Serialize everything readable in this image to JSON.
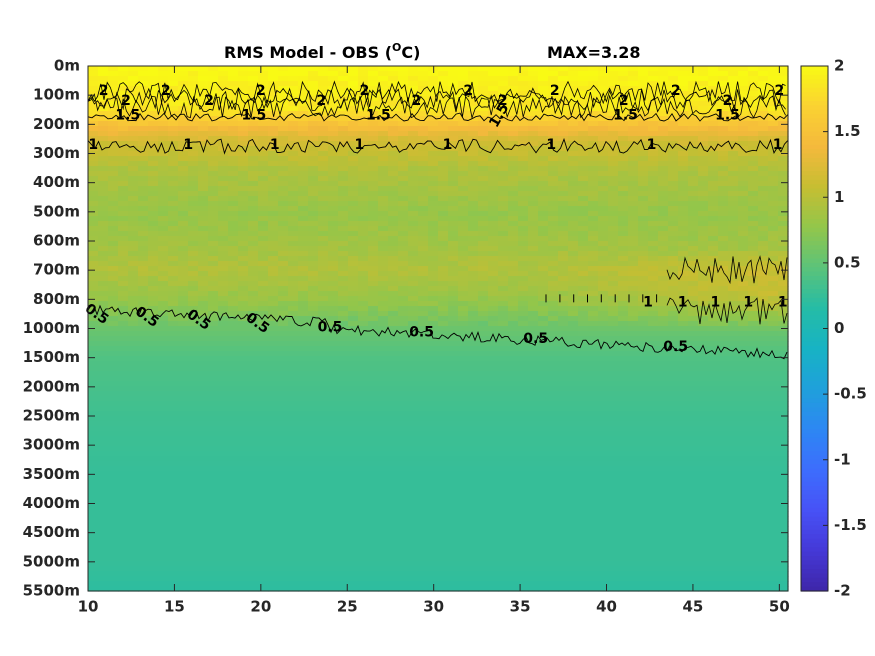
{
  "chart_data": {
    "type": "heatmap",
    "title": "RMS Model - OBS (",
    "title_sup": "O",
    "title_tail": "C)",
    "max_label": "MAX=3.28",
    "xlabel": "",
    "ylabel": "",
    "x_ticks": [
      "10",
      "15",
      "20",
      "25",
      "30",
      "35",
      "40",
      "45",
      "50"
    ],
    "x_tick_values": [
      10,
      15,
      20,
      25,
      30,
      35,
      40,
      45,
      50
    ],
    "xlim": [
      10,
      50.5
    ],
    "y_ticks": [
      "0m",
      "100m",
      "200m",
      "300m",
      "400m",
      "500m",
      "600m",
      "700m",
      "800m",
      "1000m",
      "1500m",
      "2000m",
      "2500m",
      "3000m",
      "3500m",
      "4000m",
      "4500m",
      "5000m",
      "5500m"
    ],
    "colorbar": {
      "ticks": [
        "2",
        "1.5",
        "1",
        "0.5",
        "0",
        "-0.5",
        "-1",
        "-1.5",
        "-2"
      ],
      "tick_values": [
        2,
        1.5,
        1,
        0.5,
        0,
        -0.5,
        -1,
        -1.5,
        -2
      ],
      "range": [
        -2,
        2
      ]
    },
    "depth_profile": [
      {
        "level": 0.0,
        "value": 2.0
      },
      {
        "level": 1.5,
        "value": 1.85
      },
      {
        "level": 2.0,
        "value": 1.5
      },
      {
        "level": 2.6,
        "value": 1.15
      },
      {
        "level": 3.5,
        "value": 0.95
      },
      {
        "level": 5.0,
        "value": 0.8
      },
      {
        "level": 6.0,
        "value": 0.85
      },
      {
        "level": 7.0,
        "value": 0.95
      },
      {
        "level": 8.0,
        "value": 0.8
      },
      {
        "level": 9.0,
        "value": 0.55
      },
      {
        "level": 10.0,
        "value": 0.4
      },
      {
        "level": 12.0,
        "value": 0.3
      },
      {
        "level": 14.0,
        "value": 0.25
      },
      {
        "level": 17.0,
        "value": 0.25
      },
      {
        "level": 18.0,
        "value": 0.2
      }
    ],
    "contours": [
      {
        "level": "2",
        "labels": [
          {
            "x": 10.9,
            "text": "2"
          },
          {
            "x": 12.2,
            "text": "2"
          },
          {
            "x": 14.5,
            "text": "2"
          },
          {
            "x": 17.0,
            "text": "2"
          },
          {
            "x": 20.0,
            "text": "2"
          },
          {
            "x": 23.5,
            "text": "2"
          },
          {
            "x": 26.0,
            "text": "2"
          },
          {
            "x": 29.0,
            "text": "2"
          },
          {
            "x": 32.0,
            "text": "2"
          },
          {
            "x": 34.0,
            "text": "2"
          },
          {
            "x": 37.0,
            "text": "2"
          },
          {
            "x": 41.0,
            "text": "2"
          },
          {
            "x": 44.0,
            "text": "2"
          },
          {
            "x": 47.0,
            "text": "2"
          },
          {
            "x": 50.0,
            "text": "2"
          }
        ]
      },
      {
        "level": "1.5",
        "labels": [
          {
            "x": 12.3,
            "text": "1.5"
          },
          {
            "x": 19.6,
            "text": "1.5"
          },
          {
            "x": 26.8,
            "text": "1.5"
          },
          {
            "x": 33.8,
            "text": "1.5"
          },
          {
            "x": 41.1,
            "text": "1.5"
          },
          {
            "x": 47.0,
            "text": "1.5"
          }
        ]
      },
      {
        "level": "1",
        "labels": [
          {
            "x": 10.3,
            "text": "1"
          },
          {
            "x": 15.8,
            "text": "1"
          },
          {
            "x": 20.8,
            "text": "1"
          },
          {
            "x": 25.7,
            "text": "1"
          },
          {
            "x": 30.8,
            "text": "1"
          },
          {
            "x": 36.8,
            "text": "1"
          },
          {
            "x": 42.6,
            "text": "1"
          },
          {
            "x": 49.9,
            "text": "1"
          }
        ]
      },
      {
        "level": "0.5",
        "labels": [
          {
            "x": 10.5,
            "text": "0.5"
          },
          {
            "x": 13.4,
            "text": "0.5"
          },
          {
            "x": 16.4,
            "text": "0.5"
          },
          {
            "x": 19.8,
            "text": "0.5"
          },
          {
            "x": 24.0,
            "text": "0.5"
          },
          {
            "x": 29.3,
            "text": "0.5"
          },
          {
            "x": 35.9,
            "text": "0.5"
          },
          {
            "x": 44.0,
            "text": "0.5"
          }
        ]
      },
      {
        "level": "1 (deep)",
        "labels": [
          {
            "x": 42.4,
            "text": "1"
          },
          {
            "x": 44.4,
            "text": "1"
          },
          {
            "x": 46.3,
            "text": "1"
          },
          {
            "x": 48.2,
            "text": "1"
          },
          {
            "x": 50.2,
            "text": "1"
          }
        ]
      }
    ],
    "grid": false,
    "legend": "colorbar-right"
  },
  "colors": {
    "colormap": [
      "#3e26a8",
      "#4538d7",
      "#4752f6",
      "#3d6dfd",
      "#2d87f3",
      "#1fa0db",
      "#17b3c4",
      "#25bca6",
      "#5bc37a",
      "#92c64b",
      "#c6be32",
      "#f4b93c",
      "#fad232",
      "#f9fa14"
    ],
    "axis": "#262626",
    "contour": "#000000"
  }
}
